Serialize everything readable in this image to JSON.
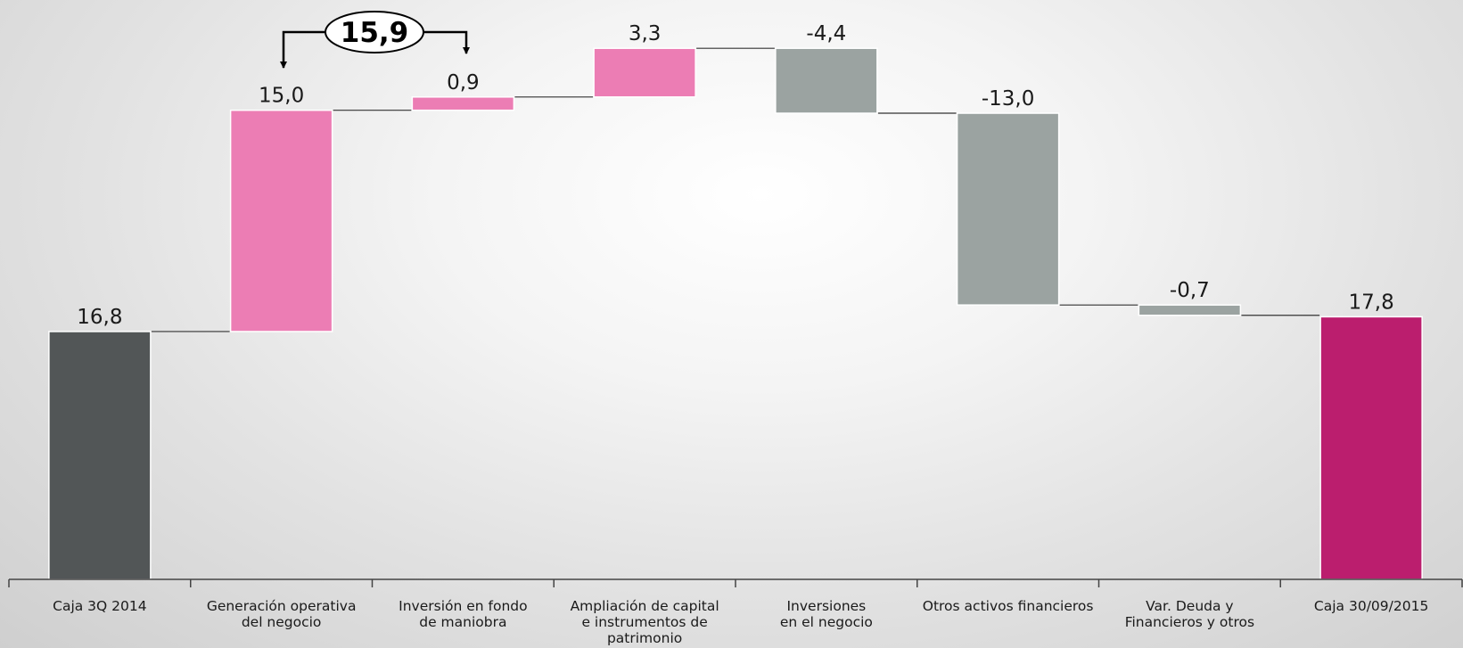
{
  "chart_data": {
    "type": "bar",
    "subtype": "waterfall",
    "title": "",
    "xlabel": "",
    "ylabel": "",
    "ylim": [
      0,
      29
    ],
    "grid": false,
    "categories": [
      "Caja 3Q 2014",
      "Generación operativa del negocio",
      "Inversión en fondo de maniobra",
      "Ampliación de capital e instrumentos de patrimonio",
      "Inversiones en el negocio",
      "Otros activos financieros",
      "Var. Deuda y Financieros y otros",
      "Caja 30/09/2015"
    ],
    "category_lines": [
      [
        "Caja 3Q 2014"
      ],
      [
        "Generación operativa",
        "del negocio"
      ],
      [
        "Inversión en fondo",
        "de maniobra"
      ],
      [
        "Ampliación de capital",
        "e instrumentos de",
        "patrimonio"
      ],
      [
        "Inversiones",
        "en el negocio"
      ],
      [
        "Otros activos financieros"
      ],
      [
        "Var. Deuda y",
        "Financieros y otros"
      ],
      [
        "Caja 30/09/2015"
      ]
    ],
    "values": [
      16.8,
      15.0,
      0.9,
      3.3,
      -4.4,
      -13.0,
      -0.7,
      17.8
    ],
    "kinds": [
      "total",
      "delta",
      "delta",
      "delta",
      "delta",
      "delta",
      "delta",
      "total"
    ],
    "value_labels": [
      "16,8",
      "15,0",
      "0,9",
      "3,3",
      "-4,4",
      "-13,0",
      "-0,7",
      "17,8"
    ],
    "callout": {
      "label": "15,9",
      "spans": [
        "Generación operativa del negocio",
        "Inversión en fondo de maniobra"
      ]
    },
    "colors": {
      "start_total": "#525657",
      "end_total": "#bb1e6e",
      "increase": "#ec7db4",
      "decrease": "#9ba3a1",
      "connector": "#333333",
      "axis": "#444444"
    }
  }
}
